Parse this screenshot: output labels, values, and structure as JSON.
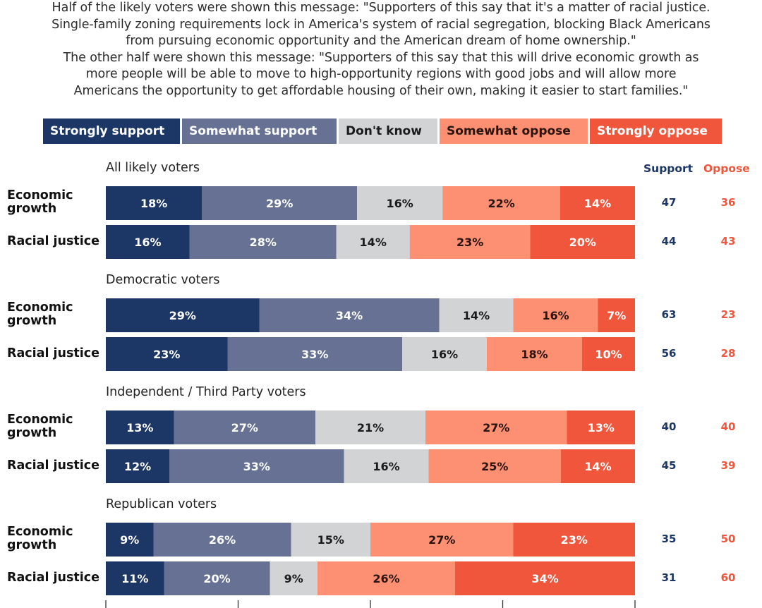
{
  "subtitle_lines": [
    "Half of the likely voters were shown this message: \"Supporters of this say that it's a matter of racial justice.",
    "Single-family zoning requirements lock in America's system of racial segregation, blocking Black Americans",
    "from pursuing economic opportunity and the American dream of home ownership.\"",
    "The other half were shown this message: \"Supporters of this say that this will drive economic growth as",
    "more people will be able to move to high-opportunity regions with good jobs and will allow more",
    "Americans the opportunity to get affordable housing of their own, making it easier to start families.\""
  ],
  "colors": {
    "strongly_support": "#1c3765",
    "somewhat_support": "#667193",
    "dont_know": "#d2d3d5",
    "somewhat_oppose": "#fd8f72",
    "strongly_oppose": "#ef563b",
    "support_text": "#1c3765",
    "oppose_text": "#ef563b"
  },
  "chart_data": {
    "type": "bar",
    "orientation": "horizontal",
    "stacked": true,
    "normalized": true,
    "title": "",
    "xlabel": "",
    "ylabel": "",
    "xlim": [
      0,
      100
    ],
    "x_ticks": [
      0,
      25,
      50,
      75,
      100
    ],
    "grid": false,
    "legend": {
      "placement": "top",
      "entries": [
        "Strongly support",
        "Somewhat support",
        "Don't know",
        "Somewhat oppose",
        "Strongly oppose"
      ],
      "text_colors": [
        "#ffffff",
        "#ffffff",
        "#1a1a1a",
        "#2a1410",
        "#ffffff"
      ]
    },
    "summary_columns": [
      "Support",
      "Oppose"
    ],
    "groups": [
      {
        "title": "All likely voters",
        "rows": [
          {
            "label": "Economic growth",
            "label_lines": [
              "Economic",
              "growth"
            ],
            "values": [
              18,
              29,
              16,
              22,
              14
            ],
            "support": 47,
            "oppose": 36
          },
          {
            "label": "Racial justice",
            "label_lines": [
              "Racial justice"
            ],
            "values": [
              16,
              28,
              14,
              23,
              20
            ],
            "support": 44,
            "oppose": 43
          }
        ]
      },
      {
        "title": "Democratic voters",
        "rows": [
          {
            "label": "Economic growth",
            "label_lines": [
              "Economic",
              "growth"
            ],
            "values": [
              29,
              34,
              14,
              16,
              7
            ],
            "support": 63,
            "oppose": 23
          },
          {
            "label": "Racial justice",
            "label_lines": [
              "Racial justice"
            ],
            "values": [
              23,
              33,
              16,
              18,
              10
            ],
            "support": 56,
            "oppose": 28
          }
        ]
      },
      {
        "title": "Independent / Third Party voters",
        "rows": [
          {
            "label": "Economic growth",
            "label_lines": [
              "Economic",
              "growth"
            ],
            "values": [
              13,
              27,
              21,
              27,
              13
            ],
            "support": 40,
            "oppose": 40
          },
          {
            "label": "Racial justice",
            "label_lines": [
              "Racial justice"
            ],
            "values": [
              12,
              33,
              16,
              25,
              14
            ],
            "support": 45,
            "oppose": 39
          }
        ]
      },
      {
        "title": "Republican voters",
        "rows": [
          {
            "label": "Economic growth",
            "label_lines": [
              "Economic",
              "growth"
            ],
            "values": [
              9,
              26,
              15,
              27,
              23
            ],
            "support": 35,
            "oppose": 50
          },
          {
            "label": "Racial justice",
            "label_lines": [
              "Racial justice"
            ],
            "values": [
              11,
              20,
              9,
              26,
              34
            ],
            "support": 31,
            "oppose": 60
          }
        ]
      }
    ]
  }
}
